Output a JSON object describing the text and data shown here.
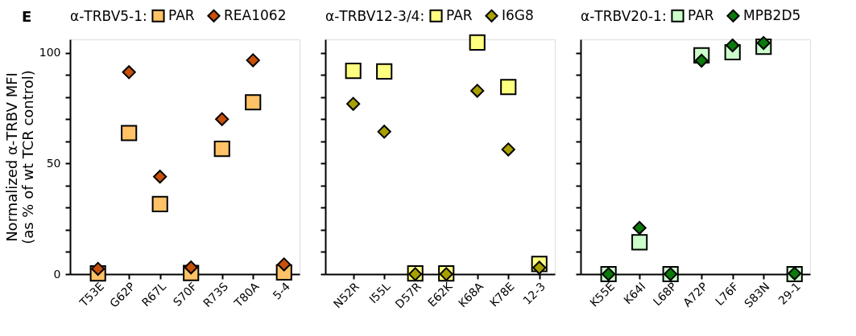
{
  "chart_data": [
    {
      "type": "scatter",
      "title": "E",
      "legend_title": "α-TRBV5-1:",
      "legend": "top",
      "ylabel": "Normalized α-TRBV MFI\n(as % of wt TCR control)",
      "categories": [
        "T53E",
        "G62P",
        "R67L",
        "S70F",
        "R73S",
        "T80A",
        "5-4"
      ],
      "ylim": [
        0,
        106
      ],
      "yticks": [
        0,
        {
          "value": 10,
          "label": null
        },
        {
          "value": 20,
          "label": null
        },
        {
          "value": 30,
          "label": null
        },
        {
          "value": 40,
          "label": null
        },
        50,
        {
          "value": 60,
          "label": null
        },
        {
          "value": 70,
          "label": null
        },
        {
          "value": 80,
          "label": null
        },
        {
          "value": 90,
          "label": null
        },
        100
      ],
      "grid": false,
      "series": [
        {
          "name": "PAR",
          "color": "#ffc266",
          "marker": "square",
          "values": [
            0.3,
            63.7,
            31.6,
            0.5,
            56.6,
            77.6,
            0.8
          ]
        },
        {
          "name": "REA1062",
          "color": "#c8500a",
          "marker": "diamond",
          "values": [
            2.4,
            91.2,
            44,
            3,
            70,
            96.6,
            4.4
          ]
        }
      ]
    },
    {
      "type": "scatter",
      "legend_title": "α-TRBV12-3/4:",
      "legend": "top",
      "tick_labels": "x",
      "categories": [
        "N52R",
        "I55L",
        "D57R",
        "E62K",
        "K68A",
        "K78E",
        "12-3"
      ],
      "ylim": [
        0,
        106
      ],
      "yticks": [
        0,
        {
          "value": 10,
          "label": null
        },
        {
          "value": 20,
          "label": null
        },
        {
          "value": 30,
          "label": null
        },
        {
          "value": 40,
          "label": null
        },
        50,
        {
          "value": 60,
          "label": null
        },
        {
          "value": 70,
          "label": null
        },
        {
          "value": 80,
          "label": null
        },
        {
          "value": 90,
          "label": null
        },
        100
      ],
      "grid": false,
      "series": [
        {
          "name": "PAR",
          "color": "#ffff80",
          "marker": "square",
          "values": [
            91.8,
            91.5,
            0.3,
            0.3,
            104.6,
            84.5,
            4.6
          ]
        },
        {
          "name": "I6G8",
          "color": "#a8a000",
          "marker": "diamond",
          "values": [
            76.9,
            64.3,
            0,
            0,
            82.8,
            56.3,
            2.9
          ]
        }
      ]
    },
    {
      "type": "scatter",
      "legend_title": "α-TRBV20-1:",
      "legend": "top",
      "tick_labels": "x",
      "categories": [
        "K55E",
        "K64I",
        "L68P",
        "A72P",
        "L76F",
        "S83N",
        "29-1"
      ],
      "ylim": [
        0,
        106
      ],
      "yticks": [
        0,
        {
          "value": 10,
          "label": null
        },
        {
          "value": 20,
          "label": null
        },
        {
          "value": 30,
          "label": null
        },
        {
          "value": 40,
          "label": null
        },
        50,
        {
          "value": 60,
          "label": null
        },
        {
          "value": 70,
          "label": null
        },
        {
          "value": 80,
          "label": null
        },
        {
          "value": 90,
          "label": null
        },
        100
      ],
      "grid": false,
      "series": [
        {
          "name": "PAR",
          "color": "#ccffcc",
          "marker": "square",
          "values": [
            0,
            14.4,
            0,
            98.8,
            100.2,
            102.7,
            0
          ]
        },
        {
          "name": "MPB2D5",
          "color": "#0a7a0a",
          "marker": "diamond",
          "values": [
            0,
            20.9,
            0,
            96.4,
            103.3,
            104.4,
            0.3
          ]
        }
      ]
    }
  ]
}
